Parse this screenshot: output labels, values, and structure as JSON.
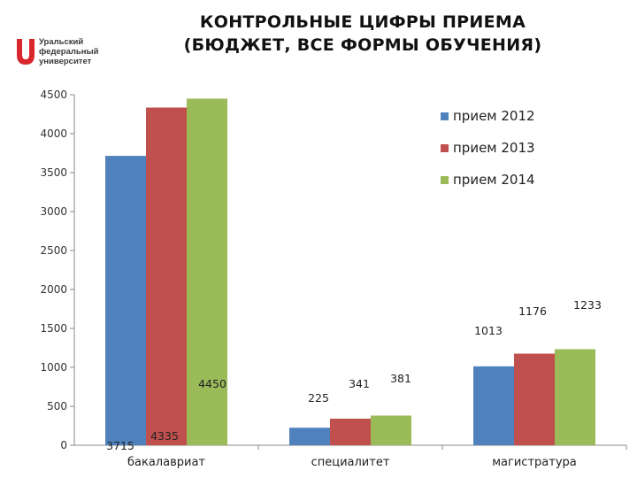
{
  "logo": {
    "lines": [
      "Уральский",
      "федеральный",
      "университет"
    ],
    "color": "#d9262c"
  },
  "title": {
    "line1": "КОНТРОЛЬНЫЕ ЦИФРЫ ПРИЕМА",
    "line2": "(БЮДЖЕТ, ВСЕ ФОРМЫ ОБУЧЕНИЯ)"
  },
  "chart_data": {
    "type": "bar",
    "categories": [
      "бакалавриат",
      "специалитет",
      "магистратура"
    ],
    "series": [
      {
        "name": "прием 2012",
        "values": [
          3715,
          225,
          1013
        ],
        "color": "#4f81bd",
        "labels": [
          "3715",
          "225",
          "1013"
        ]
      },
      {
        "name": "прием 2013",
        "values": [
          4335,
          341,
          1176
        ],
        "color": "#c0504d",
        "labels": [
          "4335",
          "341",
          "1176"
        ]
      },
      {
        "name": "прием 2014",
        "values": [
          4450,
          381,
          1233
        ],
        "color": "#9bbb59",
        "labels": [
          "4450",
          "381",
          "1233"
        ]
      }
    ],
    "ylim": [
      0,
      4500
    ],
    "yticks": [
      "0",
      "500",
      "1000",
      "1500",
      "2000",
      "2500",
      "3000",
      "3500",
      "4000",
      "4500"
    ],
    "grid": false,
    "legend": "top-right"
  }
}
